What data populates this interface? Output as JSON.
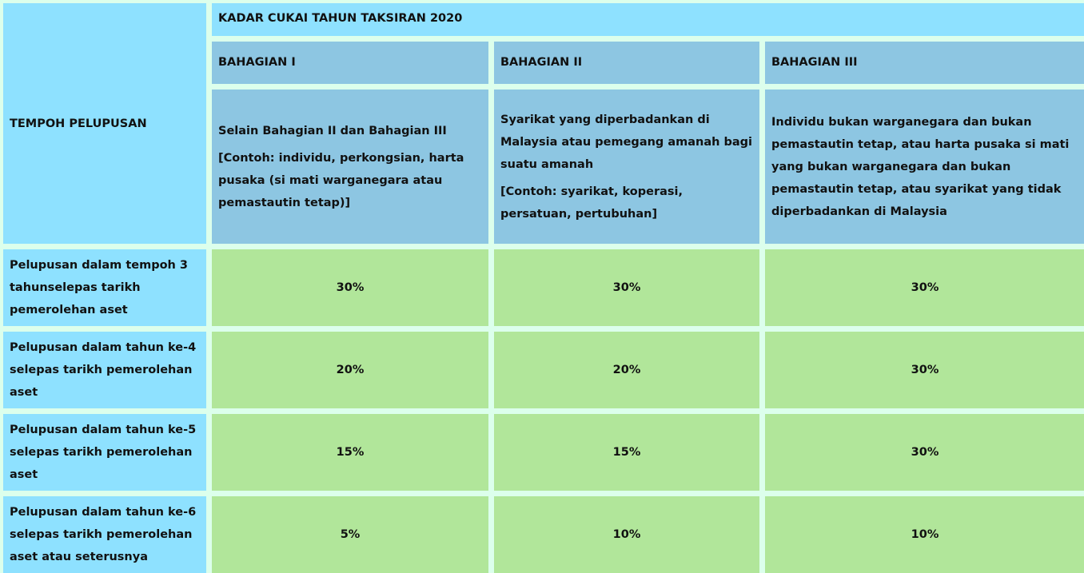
{
  "header": {
    "row_label_header": "TEMPOH PELUPUSAN",
    "title": "KADAR CUKAI TAHUN TAKSIRAN 2020",
    "parts": [
      {
        "label": "BAHAGIAN I",
        "desc": "Selain Bahagian II dan Bahagian III",
        "example": "[Contoh: individu, perkongsian, harta pusaka (si mati warganegara atau pemastautin tetap)]"
      },
      {
        "label": "BAHAGIAN II",
        "desc": "Syarikat yang diperbadankan di Malaysia atau pemegang amanah bagi suatu amanah",
        "example": "[Contoh: syarikat, koperasi, persatuan, pertubuhan]"
      },
      {
        "label": "BAHAGIAN III",
        "desc": "Individu bukan warganegara dan bukan pemastautin tetap, atau harta pusaka si mati yang bukan warganegara dan bukan pemastautin tetap, atau syarikat yang tidak diperbadankan di Malaysia",
        "example": ""
      }
    ]
  },
  "rows": [
    {
      "label": "Pelupusan dalam tempoh 3 tahunselepas tarikh pemerolehan aset",
      "values": [
        "30%",
        "30%",
        "30%"
      ]
    },
    {
      "label": "Pelupusan dalam tahun ke-4 selepas tarikh pemerolehan aset",
      "values": [
        "20%",
        "20%",
        "30%"
      ]
    },
    {
      "label": "Pelupusan dalam tahun ke-5 selepas tarikh pemerolehan aset",
      "values": [
        "15%",
        "15%",
        "30%"
      ]
    },
    {
      "label": "Pelupusan dalam tahun ke-6 selepas tarikh pemerolehan aset atau seterusnya",
      "values": [
        "5%",
        "10%",
        "10%"
      ]
    }
  ],
  "colors": {
    "background": "#dcffec",
    "label_cell": "#8ee1ff",
    "header_cell": "#8dc6e2",
    "value_cell": "#b1e69a"
  }
}
